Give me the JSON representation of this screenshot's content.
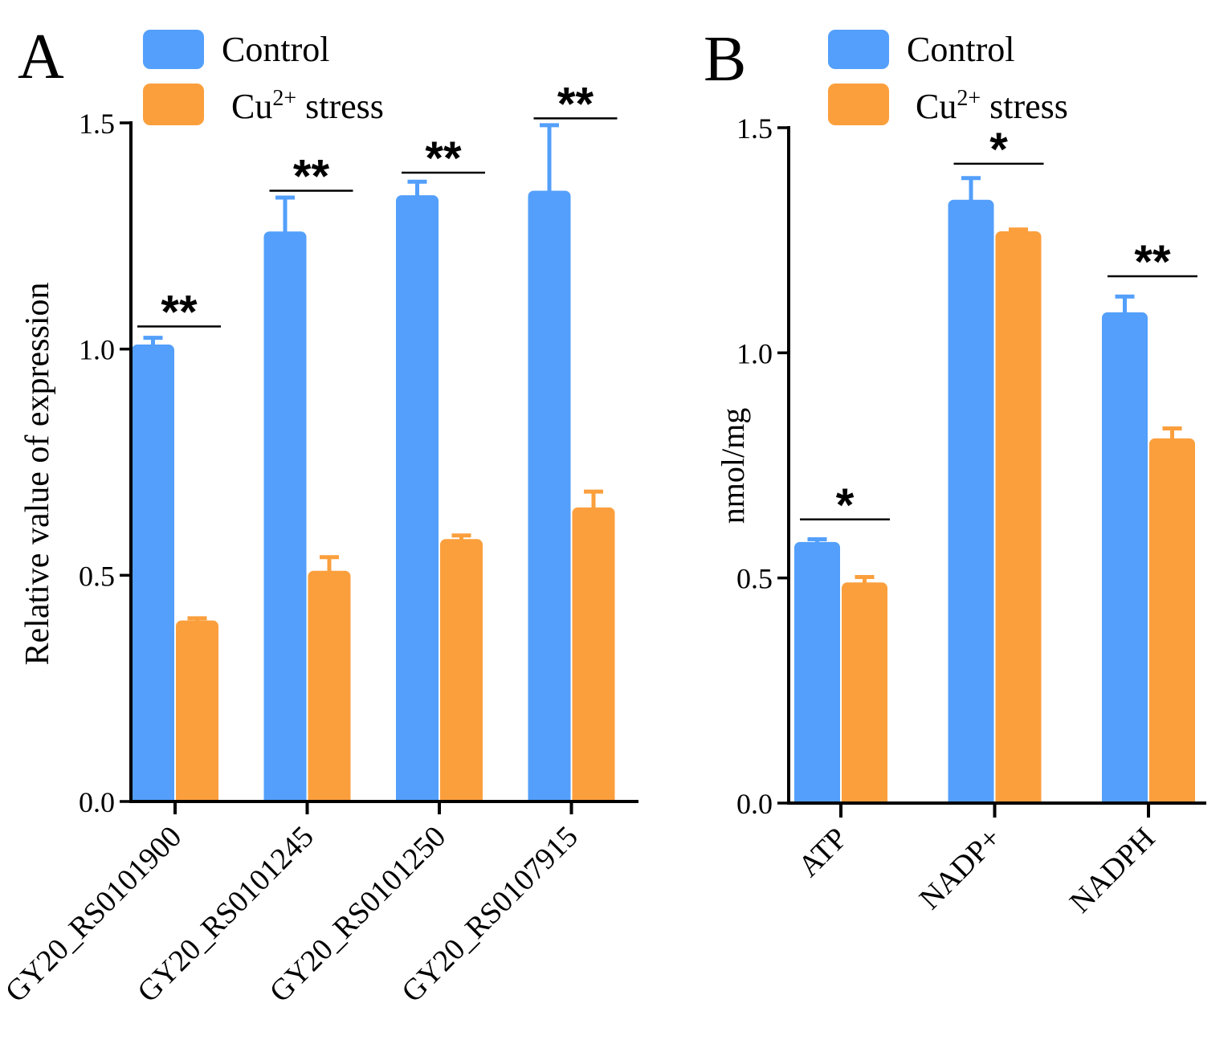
{
  "colors": {
    "control": "#539ffb",
    "stress": "#fb9f3d",
    "axis": "#000000"
  },
  "legend": {
    "control_label": "Control",
    "stress_prefix": "Cu",
    "stress_superscript": "2+",
    "stress_suffix": " stress"
  },
  "chart_data": [
    {
      "panel_label": "A",
      "type": "bar",
      "ylabel": "Relative value of expression",
      "xlabel": "",
      "ylim": [
        0,
        1.5
      ],
      "yticks": [
        "0.0",
        "0.5",
        "1.0",
        "1.5"
      ],
      "legend_position": "top",
      "categories": [
        "GY20_RS0101900",
        "GY20_RS0101245",
        "GY20_RS0101250",
        "GY20_RS0107915"
      ],
      "series": [
        {
          "name": "Control",
          "values": [
            1.01,
            1.26,
            1.34,
            1.35
          ],
          "errors": [
            0.015,
            0.075,
            0.03,
            0.145
          ]
        },
        {
          "name": "Cu2+ stress",
          "values": [
            0.4,
            0.51,
            0.58,
            0.65
          ],
          "errors": [
            0.005,
            0.03,
            0.008,
            0.035
          ]
        }
      ],
      "significance": [
        "**",
        "**",
        "**",
        "**"
      ],
      "significance_levels": [
        1.05,
        1.35,
        1.39,
        1.51
      ]
    },
    {
      "panel_label": "B",
      "type": "bar",
      "ylabel": "nmol/mg",
      "xlabel": "",
      "ylim": [
        0,
        1.5
      ],
      "yticks": [
        "0.0",
        "0.5",
        "1.0",
        "1.5"
      ],
      "legend_position": "top",
      "categories": [
        "ATP",
        "NADP+",
        "NADPH"
      ],
      "series": [
        {
          "name": "Control",
          "values": [
            0.58,
            1.34,
            1.09
          ],
          "errors": [
            0.006,
            0.048,
            0.035
          ]
        },
        {
          "name": "Cu2+ stress",
          "values": [
            0.49,
            1.27,
            0.81
          ],
          "errors": [
            0.012,
            0.004,
            0.022
          ]
        }
      ],
      "significance": [
        "*",
        "*",
        "**"
      ],
      "significance_levels": [
        0.63,
        1.42,
        1.17
      ]
    }
  ]
}
